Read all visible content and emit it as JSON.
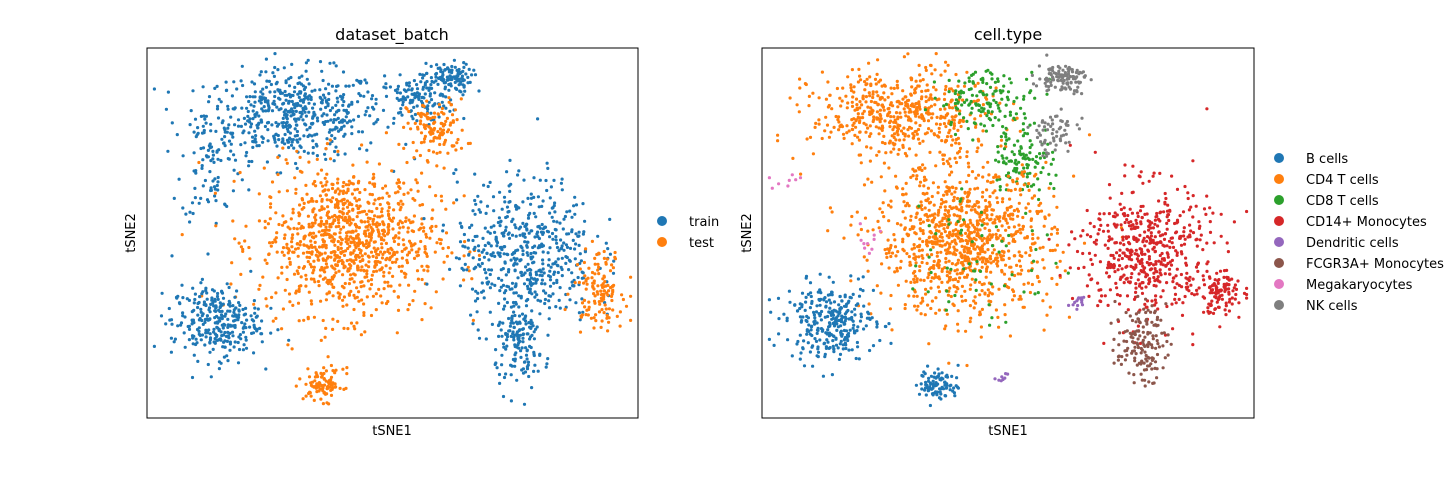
{
  "chart_data": [
    {
      "type": "scatter",
      "title": "dataset_batch",
      "xlabel": "tSNE1",
      "ylabel": "tSNE2",
      "xticks": false,
      "yticks": false,
      "grid": false,
      "xlim": [
        0,
        100
      ],
      "ylim": [
        0,
        100
      ],
      "legend_position": "right",
      "series": [
        {
          "name": "train",
          "color": "#1f77b4"
        },
        {
          "name": "test",
          "color": "#ff7f0e"
        }
      ],
      "clusters": [
        {
          "series": "train",
          "cx": 30,
          "cy": 82,
          "sx": 9,
          "sy": 6,
          "n": 520
        },
        {
          "series": "train",
          "cx": 55,
          "cy": 86,
          "sx": 4,
          "sy": 3,
          "n": 120
        },
        {
          "series": "train",
          "cx": 13,
          "cy": 70,
          "sx": 3,
          "sy": 9,
          "n": 90
        },
        {
          "series": "train",
          "cx": 61,
          "cy": 92,
          "sx": 2.5,
          "sy": 2,
          "n": 110
        },
        {
          "series": "test",
          "cx": 59,
          "cy": 78,
          "sx": 3,
          "sy": 4,
          "n": 120
        },
        {
          "series": "test",
          "cx": 41,
          "cy": 48,
          "sx": 9,
          "sy": 10,
          "n": 1000
        },
        {
          "series": "train",
          "cx": 14,
          "cy": 26,
          "sx": 4.5,
          "sy": 5,
          "n": 300
        },
        {
          "series": "train",
          "cx": 77,
          "cy": 45,
          "sx": 7,
          "sy": 10,
          "n": 520
        },
        {
          "series": "train",
          "cx": 76,
          "cy": 20,
          "sx": 2.5,
          "sy": 6,
          "n": 150
        },
        {
          "series": "test",
          "cx": 92,
          "cy": 35,
          "sx": 2.5,
          "sy": 5,
          "n": 130
        },
        {
          "series": "test",
          "cx": 36,
          "cy": 9,
          "sx": 2,
          "sy": 2.2,
          "n": 90
        }
      ]
    },
    {
      "type": "scatter",
      "title": "cell.type",
      "xlabel": "tSNE1",
      "ylabel": "tSNE2",
      "xticks": false,
      "yticks": false,
      "grid": false,
      "xlim": [
        0,
        100
      ],
      "ylim": [
        0,
        100
      ],
      "legend_position": "right",
      "series": [
        {
          "name": "B cells",
          "color": "#1f77b4"
        },
        {
          "name": "CD4 T cells",
          "color": "#ff7f0e"
        },
        {
          "name": "CD8 T cells",
          "color": "#2ca02c"
        },
        {
          "name": "CD14+ Monocytes",
          "color": "#d62728"
        },
        {
          "name": "Dendritic cells",
          "color": "#9467bd"
        },
        {
          "name": "FCGR3A+ Monocytes",
          "color": "#8c564b"
        },
        {
          "name": "Megakaryocytes",
          "color": "#e377c2"
        },
        {
          "name": "NK cells",
          "color": "#7f7f7f"
        }
      ],
      "clusters": [
        {
          "series": "CD4 T cells",
          "cx": 28,
          "cy": 82,
          "sx": 9,
          "sy": 6,
          "n": 520
        },
        {
          "series": "CD8 T cells",
          "cx": 46,
          "cy": 86,
          "sx": 5,
          "sy": 4,
          "n": 140
        },
        {
          "series": "CD8 T cells",
          "cx": 53,
          "cy": 70,
          "sx": 3,
          "sy": 5,
          "n": 110
        },
        {
          "series": "NK cells",
          "cx": 61,
          "cy": 92,
          "sx": 2.5,
          "sy": 2,
          "n": 110
        },
        {
          "series": "NK cells",
          "cx": 59,
          "cy": 77,
          "sx": 2.5,
          "sy": 3,
          "n": 60
        },
        {
          "series": "CD4 T cells",
          "cx": 41,
          "cy": 48,
          "sx": 9,
          "sy": 10,
          "n": 1000
        },
        {
          "series": "CD8 T cells",
          "cx": 45,
          "cy": 45,
          "sx": 8,
          "sy": 10,
          "n": 60
        },
        {
          "series": "B cells",
          "cx": 14,
          "cy": 26,
          "sx": 4.5,
          "sy": 5,
          "n": 300
        },
        {
          "series": "CD14+ Monocytes",
          "cx": 78,
          "cy": 45,
          "sx": 6.5,
          "sy": 9,
          "n": 520
        },
        {
          "series": "CD14+ Monocytes",
          "cx": 93,
          "cy": 34,
          "sx": 2.5,
          "sy": 3,
          "n": 110
        },
        {
          "series": "FCGR3A+ Monocytes",
          "cx": 77,
          "cy": 20,
          "sx": 2.5,
          "sy": 5,
          "n": 150
        },
        {
          "series": "B cells",
          "cx": 36,
          "cy": 9,
          "sx": 2,
          "sy": 2.2,
          "n": 90
        },
        {
          "series": "Dendritic cells",
          "cx": 64,
          "cy": 32,
          "sx": 0.8,
          "sy": 1.2,
          "n": 14
        },
        {
          "series": "Dendritic cells",
          "cx": 49,
          "cy": 11,
          "sx": 0.7,
          "sy": 0.6,
          "n": 8
        },
        {
          "series": "Megakaryocytes",
          "cx": 22,
          "cy": 48,
          "sx": 1.5,
          "sy": 3,
          "n": 10
        },
        {
          "series": "Megakaryocytes",
          "cx": 5,
          "cy": 64,
          "sx": 2,
          "sy": 1.5,
          "n": 8
        }
      ]
    }
  ]
}
